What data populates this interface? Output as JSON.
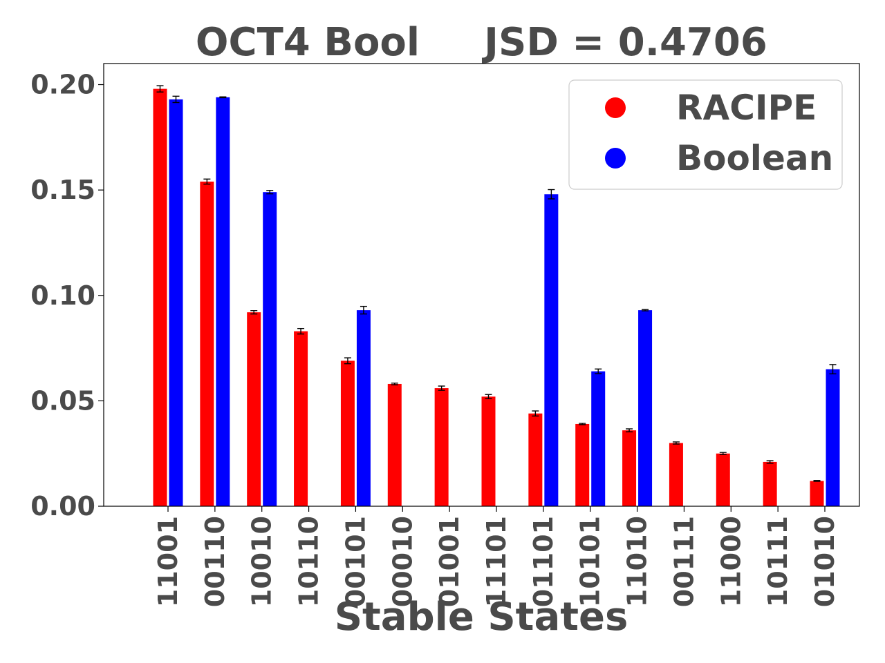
{
  "chart_data": {
    "type": "bar",
    "title_left": "OCT4 Bool",
    "title_right": "JSD = 0.4706",
    "xlabel": "Stable States",
    "ylabel": "",
    "ylim": [
      0,
      0.21
    ],
    "yticks": [
      "0.00",
      "0.05",
      "0.10",
      "0.15",
      "0.20"
    ],
    "ytick_values": [
      0,
      0.05,
      0.1,
      0.15,
      0.2
    ],
    "grid": false,
    "legend_position": "upper-right",
    "categories": [
      "11001",
      "00110",
      "10010",
      "10110",
      "00101",
      "00010",
      "01001",
      "11101",
      "01101",
      "10101",
      "11010",
      "00111",
      "11000",
      "10111",
      "01010"
    ],
    "series": [
      {
        "name": "RACIPE",
        "color": "#ff0000",
        "values": [
          0.198,
          0.154,
          0.092,
          0.083,
          0.069,
          0.058,
          0.056,
          0.052,
          0.044,
          0.039,
          0.036,
          0.03,
          0.025,
          0.021,
          0.012
        ],
        "errors": [
          0.0015,
          0.0012,
          0.0008,
          0.0013,
          0.0014,
          0.0004,
          0.001,
          0.001,
          0.0012,
          0.0003,
          0.0007,
          0.0005,
          0.0005,
          0.0006,
          0.0002
        ]
      },
      {
        "name": "Boolean",
        "color": "#0000ff",
        "values": [
          0.193,
          0.194,
          0.149,
          0,
          0.093,
          0,
          0,
          0,
          0.148,
          0.064,
          0.093,
          0,
          0,
          0,
          0.065
        ],
        "errors": [
          0.0015,
          0.0002,
          0.0008,
          0,
          0.0018,
          0,
          0,
          0,
          0.0022,
          0.0011,
          0.0003,
          0,
          0,
          0,
          0.0022
        ]
      }
    ]
  }
}
